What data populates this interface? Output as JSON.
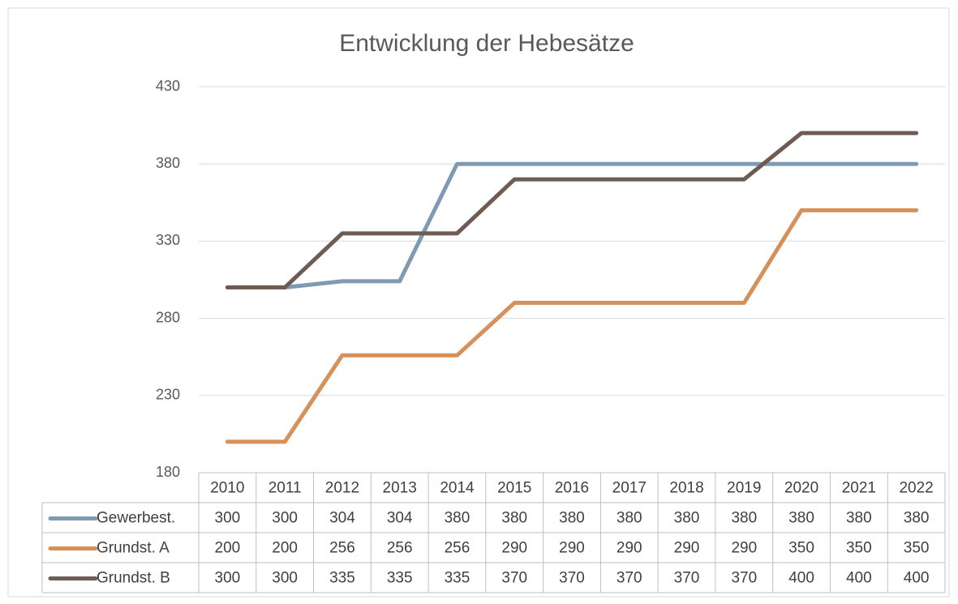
{
  "chart_data": {
    "type": "line",
    "title": "Entwicklung der Hebesätze",
    "categories": [
      "2010",
      "2011",
      "2012",
      "2013",
      "2014",
      "2015",
      "2016",
      "2017",
      "2018",
      "2019",
      "2020",
      "2021",
      "2022"
    ],
    "series": [
      {
        "name": "Gewerbest.",
        "color": "#7f9bb3",
        "values": [
          300,
          300,
          304,
          304,
          380,
          380,
          380,
          380,
          380,
          380,
          380,
          380,
          380
        ]
      },
      {
        "name": "Grundst. A",
        "color": "#d6915a",
        "values": [
          200,
          200,
          256,
          256,
          256,
          290,
          290,
          290,
          290,
          290,
          350,
          350,
          350
        ]
      },
      {
        "name": "Grundst. B",
        "color": "#6e5c52",
        "values": [
          300,
          300,
          335,
          335,
          335,
          370,
          370,
          370,
          370,
          370,
          400,
          400,
          400
        ]
      }
    ],
    "ylim": [
      180,
      430
    ],
    "yticks": [
      180,
      230,
      280,
      330,
      380,
      430
    ],
    "grid": true
  }
}
